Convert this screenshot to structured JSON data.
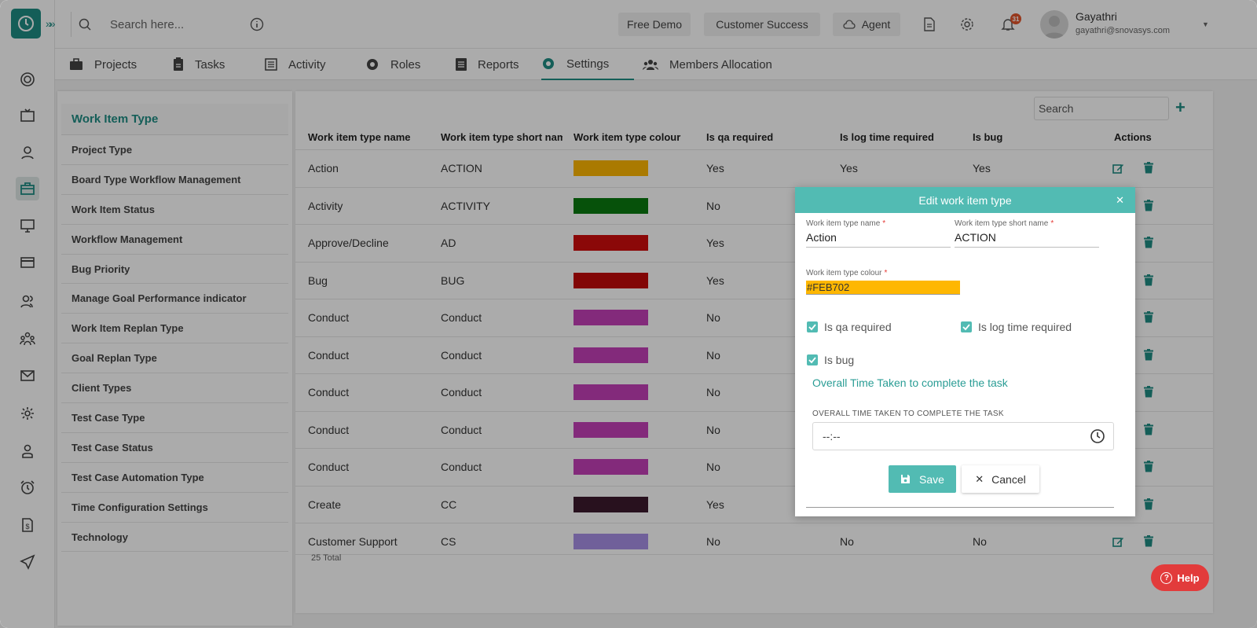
{
  "header": {
    "search_placeholder": "Search here...",
    "buttons": [
      "Free Demo",
      "Customer Success",
      "Agent"
    ],
    "notification_count": "31",
    "user_name": "Gayathri",
    "user_email": "gayathri@snovasys.com"
  },
  "tabs": [
    {
      "label": "Projects",
      "icon": "briefcase-icon"
    },
    {
      "label": "Tasks",
      "icon": "clipboard-icon"
    },
    {
      "label": "Activity",
      "icon": "list-icon"
    },
    {
      "label": "Roles",
      "icon": "gear-badge-icon"
    },
    {
      "label": "Reports",
      "icon": "report-icon"
    },
    {
      "label": "Settings",
      "icon": "gear-icon",
      "active": true
    },
    {
      "label": "Members Allocation",
      "icon": "people-icon"
    }
  ],
  "settings_menu": [
    "Work Item Type",
    "Project Type",
    "Board Type Workflow Management",
    "Work Item Status",
    "Workflow Management",
    "Bug Priority",
    "Manage Goal Performance indicator",
    "Work Item Replan Type",
    "Goal Replan Type",
    "Client Types",
    "Test Case Type",
    "Test Case Status",
    "Test Case Automation Type",
    "Time Configuration Settings",
    "Technology"
  ],
  "grid": {
    "search_placeholder": "Search",
    "columns": [
      "Work item type name",
      "Work item type short name",
      "Work item type colour",
      "Is qa required",
      "Is log time required",
      "Is bug",
      "Actions"
    ],
    "rows": [
      {
        "name": "Action",
        "short": "ACTION",
        "colour": "#feb702",
        "qa": "Yes",
        "log": "Yes",
        "bug": "Yes"
      },
      {
        "name": "Activity",
        "short": "ACTIVITY",
        "colour": "#0a7a10",
        "qa": "No",
        "log": "",
        "bug": ""
      },
      {
        "name": "Approve/Decline",
        "short": "AD",
        "colour": "#d00c0c",
        "qa": "Yes",
        "log": "",
        "bug": ""
      },
      {
        "name": "Bug",
        "short": "BUG",
        "colour": "#c20a0a",
        "qa": "Yes",
        "log": "",
        "bug": ""
      },
      {
        "name": "Conduct",
        "short": "Conduct",
        "colour": "#c43fb8",
        "qa": "No",
        "log": "",
        "bug": ""
      },
      {
        "name": "Conduct",
        "short": "Conduct",
        "colour": "#c43fb8",
        "qa": "No",
        "log": "",
        "bug": ""
      },
      {
        "name": "Conduct",
        "short": "Conduct",
        "colour": "#c43fb8",
        "qa": "No",
        "log": "",
        "bug": ""
      },
      {
        "name": "Conduct",
        "short": "Conduct",
        "colour": "#c43fb8",
        "qa": "No",
        "log": "",
        "bug": ""
      },
      {
        "name": "Conduct",
        "short": "Conduct",
        "colour": "#c43fb8",
        "qa": "No",
        "log": "",
        "bug": ""
      },
      {
        "name": "Create",
        "short": "CC",
        "colour": "#3c1a2e",
        "qa": "Yes",
        "log": "",
        "bug": ""
      },
      {
        "name": "Customer Support",
        "short": "CS",
        "colour": "#a890e6",
        "qa": "No",
        "log": "No",
        "bug": "No"
      }
    ],
    "total": "25 Total"
  },
  "dialog": {
    "title": "Edit work item type",
    "name_label": "Work item type name",
    "name_value": "Action",
    "short_label": "Work item type short name",
    "short_value": "ACTION",
    "colour_label": "Work item type colour",
    "colour_value": "#FEB702",
    "qa_label": "Is qa required",
    "log_label": "Is log time required",
    "bug_label": "Is bug",
    "section_title": "Overall Time Taken to complete the task",
    "time_caption": "OVERALL TIME TAKEN TO COMPLETE THE TASK",
    "time_value": "--:--",
    "save_label": "Save",
    "cancel_label": "Cancel"
  },
  "help_label": "Help",
  "colors": {
    "accent": "#1f8c84",
    "dialog_header": "#52bbb3",
    "help": "#e23b3b"
  }
}
